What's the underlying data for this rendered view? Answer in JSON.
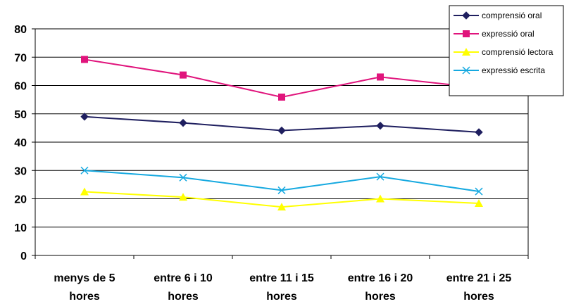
{
  "chart_data": {
    "type": "line",
    "title": "",
    "xlabel": "",
    "ylabel": "",
    "categories": [
      [
        "menys de 5",
        "hores"
      ],
      [
        "entre 6 i 10",
        "hores"
      ],
      [
        "entre 11 i 15",
        "hores"
      ],
      [
        "entre 16 i 20",
        "hores"
      ],
      [
        "entre 21 i 25",
        "hores"
      ]
    ],
    "ylim": [
      0,
      80
    ],
    "yticks": [
      0,
      10,
      20,
      30,
      40,
      50,
      60,
      70,
      80
    ],
    "grid": true,
    "legend_position": "top-right",
    "series": [
      {
        "name": "comprensió oral",
        "color": "#1f1f5f",
        "marker": "diamond",
        "values": [
          49,
          46.8,
          44.1,
          45.8,
          43.5
        ]
      },
      {
        "name": "expressió oral",
        "color": "#e0147c",
        "marker": "square",
        "values": [
          69.2,
          63.7,
          55.9,
          63,
          59.2
        ]
      },
      {
        "name": "comprensió lectora",
        "color": "#ffff00",
        "marker": "triangle",
        "values": [
          22.5,
          20.6,
          17.1,
          20,
          18.4
        ]
      },
      {
        "name": "expressió escrita",
        "color": "#16a9e0",
        "marker": "x",
        "values": [
          30,
          27.5,
          23,
          27.8,
          22.6
        ]
      }
    ]
  }
}
